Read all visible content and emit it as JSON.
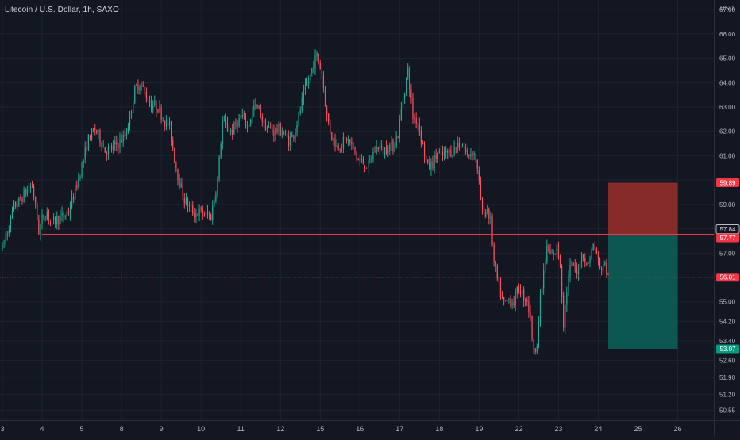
{
  "chart_data": {
    "type": "candlestick",
    "title": "Litecoin / U.S. Dollar, 1h, SAXO",
    "currency": "USD",
    "ylim": [
      50.4,
      67.2
    ],
    "y_ticks": [
      "50.55",
      "51.20",
      "51.90",
      "52.60",
      "53.40",
      "54.20",
      "55.00",
      "56.00",
      "57.00",
      "58.00",
      "59.00",
      "60.00",
      "61.00",
      "62.00",
      "63.00",
      "64.00",
      "65.00",
      "66.00",
      "67.00"
    ],
    "x_ticks": [
      {
        "label": "3",
        "pos": 0
      },
      {
        "label": "4",
        "pos": 24
      },
      {
        "label": "5",
        "pos": 48
      },
      {
        "label": "8",
        "pos": 72
      },
      {
        "label": "9",
        "pos": 96
      },
      {
        "label": "10",
        "pos": 120
      },
      {
        "label": "11",
        "pos": 144
      },
      {
        "label": "12",
        "pos": 168
      },
      {
        "label": "15",
        "pos": 192
      },
      {
        "label": "16",
        "pos": 216
      },
      {
        "label": "17",
        "pos": 240
      },
      {
        "label": "18",
        "pos": 264
      },
      {
        "label": "19",
        "pos": 288
      },
      {
        "label": "22",
        "pos": 312
      },
      {
        "label": "23",
        "pos": 336
      },
      {
        "label": "24",
        "pos": 360
      },
      {
        "label": "25",
        "pos": 384
      },
      {
        "label": "26",
        "pos": 408
      }
    ],
    "x_range": [
      0,
      431
    ],
    "path_anchors": [
      [
        0,
        57.2
      ],
      [
        3,
        57.9
      ],
      [
        7,
        58.9
      ],
      [
        11,
        59.2
      ],
      [
        15,
        59.6
      ],
      [
        18,
        59.8
      ],
      [
        20,
        58.9
      ],
      [
        22,
        57.9
      ],
      [
        24,
        58.4
      ],
      [
        27,
        58.7
      ],
      [
        30,
        58.2
      ],
      [
        33,
        58.4
      ],
      [
        37,
        58.5
      ],
      [
        40,
        58.7
      ],
      [
        44,
        59.6
      ],
      [
        48,
        60.6
      ],
      [
        52,
        61.7
      ],
      [
        56,
        62.1
      ],
      [
        59,
        61.7
      ],
      [
        62,
        61.2
      ],
      [
        66,
        61.3
      ],
      [
        70,
        61.5
      ],
      [
        74,
        61.8
      ],
      [
        77,
        62.6
      ],
      [
        80,
        63.7
      ],
      [
        83,
        64.0
      ],
      [
        86,
        63.6
      ],
      [
        90,
        63.1
      ],
      [
        94,
        63.0
      ],
      [
        98,
        62.4
      ],
      [
        101,
        62.2
      ],
      [
        104,
        60.9
      ],
      [
        107,
        59.9
      ],
      [
        110,
        59.2
      ],
      [
        113,
        58.9
      ],
      [
        116,
        58.6
      ],
      [
        119,
        58.7
      ],
      [
        122,
        58.6
      ],
      [
        126,
        58.5
      ],
      [
        130,
        60.0
      ],
      [
        133,
        62.4
      ],
      [
        136,
        62.1
      ],
      [
        139,
        62.0
      ],
      [
        142,
        62.4
      ],
      [
        145,
        62.6
      ],
      [
        148,
        62.2
      ],
      [
        152,
        63.0
      ],
      [
        155,
        62.9
      ],
      [
        158,
        62.3
      ],
      [
        161,
        62.1
      ],
      [
        164,
        62.0
      ],
      [
        167,
        62.1
      ],
      [
        170,
        61.9
      ],
      [
        173,
        61.6
      ],
      [
        176,
        61.9
      ],
      [
        179,
        62.6
      ],
      [
        182,
        63.5
      ],
      [
        185,
        64.1
      ],
      [
        188,
        64.8
      ],
      [
        190,
        65.1
      ],
      [
        193,
        64.4
      ],
      [
        196,
        62.6
      ],
      [
        199,
        61.8
      ],
      [
        202,
        61.4
      ],
      [
        205,
        61.5
      ],
      [
        208,
        61.7
      ],
      [
        212,
        61.3
      ],
      [
        215,
        60.8
      ],
      [
        218,
        60.7
      ],
      [
        221,
        60.6
      ],
      [
        224,
        61.1
      ],
      [
        227,
        61.4
      ],
      [
        230,
        61.2
      ],
      [
        233,
        61.4
      ],
      [
        236,
        61.4
      ],
      [
        239,
        61.9
      ],
      [
        242,
        63.4
      ],
      [
        245,
        64.5
      ],
      [
        248,
        62.6
      ],
      [
        251,
        62.4
      ],
      [
        254,
        61.4
      ],
      [
        257,
        60.5
      ],
      [
        260,
        60.7
      ],
      [
        263,
        61.1
      ],
      [
        266,
        61.0
      ],
      [
        269,
        61.1
      ],
      [
        272,
        61.2
      ],
      [
        275,
        61.5
      ],
      [
        278,
        61.4
      ],
      [
        281,
        61.0
      ],
      [
        284,
        61.2
      ],
      [
        286,
        60.9
      ],
      [
        288,
        59.8
      ],
      [
        290,
        58.6
      ],
      [
        293,
        58.8
      ],
      [
        295,
        58.3
      ],
      [
        297,
        56.6
      ],
      [
        299,
        55.9
      ],
      [
        301,
        55.3
      ],
      [
        303,
        54.9
      ],
      [
        306,
        55.1
      ],
      [
        309,
        55.0
      ],
      [
        312,
        55.6
      ],
      [
        315,
        55.2
      ],
      [
        317,
        55.1
      ],
      [
        319,
        54.3
      ],
      [
        321,
        52.9
      ],
      [
        323,
        53.4
      ],
      [
        325,
        55.1
      ],
      [
        327,
        56.2
      ],
      [
        329,
        57.2
      ],
      [
        331,
        56.9
      ],
      [
        333,
        56.9
      ],
      [
        335,
        57.2
      ],
      [
        337,
        56.6
      ],
      [
        339,
        54.1
      ],
      [
        341,
        55.5
      ],
      [
        343,
        56.4
      ],
      [
        345,
        56.5
      ],
      [
        347,
        56.1
      ],
      [
        349,
        56.8
      ],
      [
        351,
        57.0
      ],
      [
        353,
        56.4
      ],
      [
        355,
        56.9
      ],
      [
        357,
        57.3
      ],
      [
        359,
        57.0
      ],
      [
        361,
        56.3
      ],
      [
        363,
        56.6
      ],
      [
        365,
        56.3
      ],
      [
        366,
        56.0
      ]
    ],
    "seed": 7,
    "horizontal_line": 57.77,
    "current_price_line": 56.01,
    "position": {
      "x_start": 366,
      "x_end": 408,
      "stop": 59.89,
      "entry": 57.77,
      "target": 53.07,
      "stop_color": "#8c2c2b",
      "target_color": "#0d5b55"
    },
    "price_labels": [
      {
        "value": 59.89,
        "text": "59.89",
        "bg": "#f23645",
        "fg": "#ffffff",
        "border": ""
      },
      {
        "value": 57.84,
        "text": "57.84",
        "bg": "#131722",
        "fg": "#d1d4dc",
        "border": "#d1d4dc"
      },
      {
        "value": 57.77,
        "text": "57.77",
        "bg": "#f23645",
        "fg": "#ffffff",
        "border": ""
      },
      {
        "value": 56.01,
        "text": "56.01",
        "bg": "#f23645",
        "fg": "#ffffff",
        "border": ""
      },
      {
        "value": 53.07,
        "text": "53.07",
        "bg": "#089981",
        "fg": "#ffffff",
        "border": ""
      }
    ],
    "colors": {
      "up": "#22ab94",
      "down": "#f7525f",
      "line": "#f23645",
      "grid": "#1f2330",
      "text": "#b2b5be"
    }
  }
}
